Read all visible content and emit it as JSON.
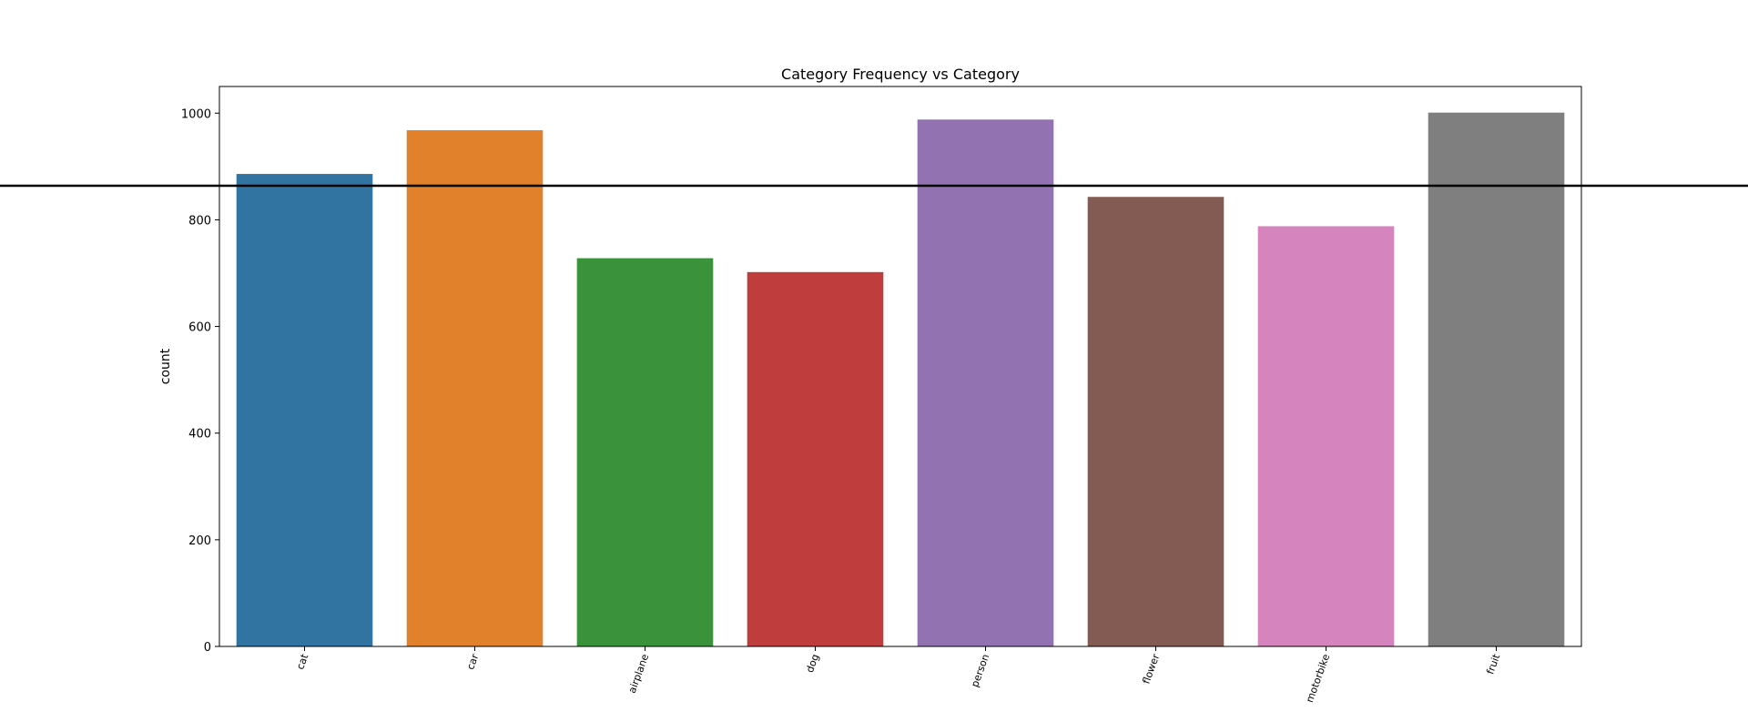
{
  "chart_data": {
    "type": "bar",
    "title": "Category Frequency vs Category",
    "xlabel": "",
    "ylabel": "count",
    "categories": [
      "cat",
      "car",
      "airplane",
      "dog",
      "person",
      "flower",
      "motorbike",
      "fruit"
    ],
    "values": [
      886,
      968,
      728,
      702,
      988,
      843,
      788,
      1001
    ],
    "colors": [
      "#3274a1",
      "#e1812c",
      "#3a923a",
      "#c03d3e",
      "#9372b2",
      "#845b53",
      "#d684bd",
      "#7f7f7f"
    ],
    "ylim": [
      0,
      1050
    ],
    "yticks": [
      0,
      200,
      400,
      600,
      800,
      1000
    ],
    "reference_line": {
      "y": 864,
      "color": "#000000"
    },
    "grid": false,
    "legend": "none"
  }
}
